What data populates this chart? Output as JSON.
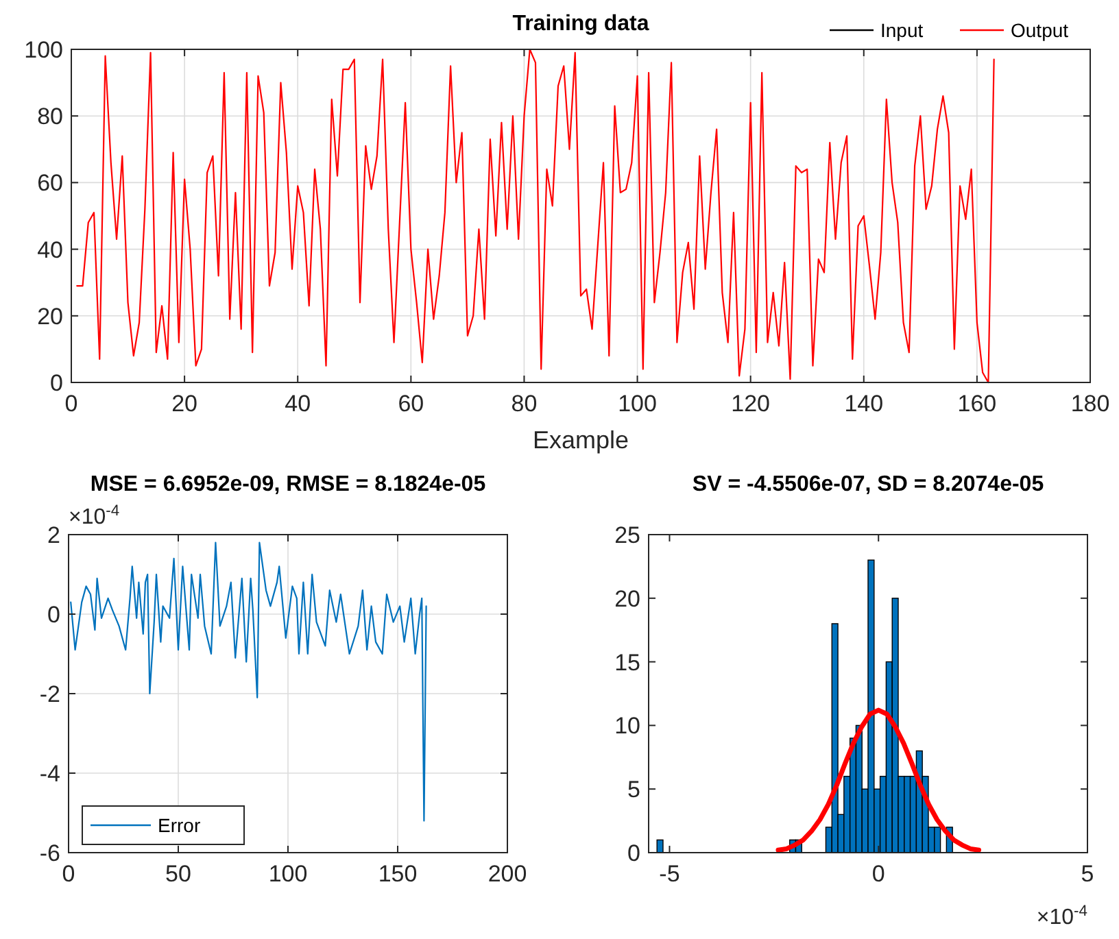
{
  "chart_data": [
    {
      "type": "line",
      "title": "Training data",
      "xlabel": "Example",
      "x": [
        1,
        2,
        3,
        4,
        5,
        6,
        7,
        8,
        9,
        10,
        11,
        12,
        13,
        14,
        15,
        16,
        17,
        18,
        19,
        20,
        21,
        22,
        23,
        24,
        25,
        26,
        27,
        28,
        29,
        30,
        31,
        32,
        33,
        34,
        35,
        36,
        37,
        38,
        39,
        40,
        41,
        42,
        43,
        44,
        45,
        46,
        47,
        48,
        49,
        50,
        51,
        52,
        53,
        54,
        55,
        56,
        57,
        58,
        59,
        60,
        61,
        62,
        63,
        64,
        65,
        66,
        67,
        68,
        69,
        70,
        71,
        72,
        73,
        74,
        75,
        76,
        77,
        78,
        79,
        80,
        81,
        82,
        83,
        84,
        85,
        86,
        87,
        88,
        89,
        90,
        91,
        92,
        93,
        94,
        95,
        96,
        97,
        98,
        99,
        100,
        101,
        102,
        103,
        104,
        105,
        106,
        107,
        108,
        109,
        110,
        111,
        112,
        113,
        114,
        115,
        116,
        117,
        118,
        119,
        120,
        121,
        122,
        123,
        124,
        125,
        126,
        127,
        128,
        129,
        130,
        131,
        132,
        133,
        134,
        135,
        136,
        137,
        138,
        139,
        140,
        141,
        142,
        143,
        144,
        145,
        146,
        147,
        148,
        149,
        150,
        151,
        152,
        153,
        154,
        155,
        156,
        157,
        158,
        159,
        160,
        161,
        162,
        163
      ],
      "series": [
        {
          "name": "Input",
          "color": "#000000",
          "values": [
            null,
            null,
            null,
            null,
            null,
            null,
            null,
            null,
            null,
            null,
            null,
            null,
            null,
            null,
            null,
            null,
            null,
            null,
            null,
            null,
            null,
            null,
            null,
            null,
            null,
            null,
            null,
            null,
            null,
            null,
            null,
            null,
            null,
            null,
            null,
            null,
            null,
            null,
            null,
            null,
            null,
            null,
            null,
            null,
            null,
            null,
            null,
            null,
            null,
            null,
            null,
            null,
            null,
            null,
            null,
            null,
            null,
            null,
            null,
            null,
            null,
            null,
            null,
            null,
            null,
            null,
            null,
            null,
            null,
            null,
            null,
            null,
            null,
            null,
            null,
            null,
            null,
            null,
            null,
            null,
            null,
            null,
            null,
            null,
            null,
            null,
            null,
            null,
            null,
            null,
            null,
            null,
            null,
            null,
            null,
            null,
            null,
            null,
            null,
            null,
            null,
            null,
            null,
            null,
            null,
            null,
            null,
            null,
            null,
            null,
            null,
            null,
            null,
            null,
            null,
            null,
            null,
            null,
            null,
            null,
            null,
            null,
            null,
            null,
            null,
            null,
            null,
            null,
            null,
            null,
            null,
            null,
            null,
            null,
            null,
            null,
            null,
            null,
            null,
            null,
            null,
            null,
            null,
            null,
            null,
            null,
            null,
            null,
            null,
            null,
            null,
            null,
            null,
            null,
            null,
            null,
            null,
            null,
            null,
            null,
            null,
            null,
            null
          ]
        },
        {
          "name": "Output",
          "color": "#ff0000",
          "values": [
            29,
            29,
            48,
            51,
            7,
            98,
            66,
            43,
            68,
            24,
            8,
            18,
            52,
            99,
            9,
            23,
            7,
            69,
            12,
            61,
            40,
            5,
            10,
            63,
            68,
            32,
            93,
            19,
            57,
            16,
            93,
            9,
            92,
            81,
            29,
            39,
            90,
            69,
            34,
            59,
            51,
            23,
            64,
            46,
            5,
            85,
            62,
            94,
            94,
            97,
            24,
            71,
            58,
            68,
            97,
            46,
            12,
            48,
            84,
            40,
            24,
            6,
            40,
            19,
            32,
            51,
            95,
            60,
            75,
            14,
            20,
            46,
            19,
            73,
            44,
            78,
            46,
            80,
            43,
            80,
            100,
            96,
            4,
            64,
            53,
            89,
            95,
            70,
            99,
            26,
            28,
            16,
            41,
            66,
            8,
            83,
            57,
            58,
            66,
            92,
            4,
            93,
            24,
            39,
            57,
            96,
            12,
            33,
            42,
            22,
            68,
            34,
            57,
            76,
            27,
            12,
            51,
            2,
            16,
            84,
            9,
            93,
            12,
            27,
            11,
            36,
            1,
            65,
            63,
            64,
            5,
            37,
            33,
            72,
            43,
            66,
            74,
            7,
            47,
            50,
            35,
            19,
            39,
            85,
            60,
            48,
            18,
            9,
            65,
            80,
            52,
            59,
            76,
            86,
            75,
            10,
            59,
            49,
            64,
            18,
            3,
            0,
            97
          ]
        }
      ],
      "xlim": [
        0,
        180
      ],
      "xticks": [
        0,
        20,
        40,
        60,
        80,
        100,
        120,
        140,
        160,
        180
      ],
      "ylim": [
        0,
        100
      ],
      "yticks": [
        0,
        20,
        40,
        60,
        80,
        100
      ],
      "grid": true,
      "legend": "top right"
    },
    {
      "type": "line",
      "title": "MSE = 6.6952e-09, RMSE = 8.1824e-05",
      "annotations": [
        "×10$^{-4}$"
      ],
      "series": [
        {
          "name": "Error",
          "color": "#0072bd",
          "x": [
            1,
            3,
            6,
            8,
            10,
            12,
            13,
            15,
            18,
            20,
            23,
            26,
            28,
            29,
            31,
            32,
            34,
            35,
            36,
            37,
            39,
            40,
            42,
            43,
            46,
            48,
            50,
            52,
            55,
            56,
            59,
            60,
            62,
            65,
            67,
            69,
            72,
            74,
            76,
            79,
            81,
            83,
            84,
            86,
            87,
            90,
            92,
            95,
            96,
            99,
            102,
            104,
            105,
            107,
            109,
            111,
            113,
            117,
            119,
            122,
            124,
            128,
            132,
            134,
            136,
            138,
            140,
            143,
            145,
            148,
            151,
            153,
            156,
            158,
            160,
            161,
            162,
            163
          ],
          "values": [
            0.3,
            -0.9,
            0.3,
            0.7,
            0.5,
            -0.4,
            0.9,
            -0.1,
            0.4,
            0.1,
            -0.3,
            -0.9,
            0.4,
            1.2,
            -0.1,
            0.8,
            -0.5,
            0.8,
            1.0,
            -2.0,
            -0.2,
            1.0,
            -0.7,
            0.2,
            -0.1,
            1.4,
            -0.9,
            1.2,
            -0.9,
            1.0,
            -0.1,
            1.0,
            -0.3,
            -1.0,
            1.8,
            -0.3,
            0.2,
            0.8,
            -1.1,
            0.9,
            -1.2,
            0.9,
            0.1,
            -2.1,
            1.8,
            0.6,
            0.2,
            0.8,
            1.2,
            -0.6,
            0.7,
            0.4,
            -1.0,
            0.8,
            -1.0,
            1.0,
            -0.2,
            -0.8,
            0.6,
            -0.2,
            0.5,
            -1.0,
            -0.3,
            0.6,
            -0.9,
            0.2,
            -0.7,
            -1.0,
            0.5,
            -0.2,
            0.2,
            -0.7,
            0.4,
            -1.0,
            0.0,
            0.4,
            -5.2,
            0.2
          ]
        }
      ],
      "xlim": [
        0,
        200
      ],
      "xticks": [
        0,
        50,
        100,
        150,
        200
      ],
      "ylim": [
        -6,
        2
      ],
      "yticks": [
        -6,
        -4,
        -2,
        0,
        2
      ],
      "grid": true,
      "legend": "bottom left"
    },
    {
      "type": "histogram",
      "title": "SV = -4.5506e-07, SD = 8.2074e-05",
      "annotations": [
        "×10$^{-4}$"
      ],
      "color": "#0072bd",
      "bins": [
        -5.3,
        -5.156,
        -5.011,
        -4.867,
        -4.723,
        -4.579,
        -4.434,
        -4.29,
        -4.146,
        -4.001,
        -3.857,
        -3.713,
        -3.568,
        -3.424,
        -3.28,
        -3.136,
        -2.991,
        -2.847,
        -2.703,
        -2.558,
        -2.414,
        -2.27,
        -2.125,
        -1.981,
        -1.837,
        -1.693,
        -1.548,
        -1.404,
        -1.26,
        -1.115,
        -0.971,
        -0.827,
        -0.682,
        -0.538,
        -0.394,
        -0.25,
        -0.105,
        0.039,
        0.183,
        0.328,
        0.472,
        0.616,
        0.76,
        0.905,
        1.049,
        1.193,
        1.338,
        1.482,
        1.626,
        1.771
      ],
      "values": [
        1,
        0,
        0,
        0,
        0,
        0,
        0,
        0,
        0,
        0,
        0,
        0,
        0,
        0,
        0,
        0,
        0,
        0,
        0,
        0,
        0,
        0,
        1,
        1,
        0,
        0,
        0,
        0,
        2,
        18,
        3,
        6,
        9,
        10,
        5,
        23,
        5,
        6,
        15,
        20,
        6,
        6,
        6,
        8,
        6,
        2,
        2,
        0,
        2
      ],
      "series": [
        {
          "type": "line",
          "color": "#ff0000",
          "x": [
            -2.4,
            -2.2,
            -2.0,
            -1.8,
            -1.6,
            -1.4,
            -1.2,
            -1.0,
            -0.8,
            -0.6,
            -0.4,
            -0.2,
            0,
            0.2,
            0.4,
            0.6,
            0.8,
            1.0,
            1.2,
            1.4,
            1.6,
            1.8,
            2.0,
            2.2,
            2.4
          ],
          "values": [
            0.2,
            0.3,
            0.6,
            1.0,
            1.7,
            2.6,
            3.8,
            5.3,
            7.0,
            8.6,
            9.9,
            10.9,
            11.2,
            10.9,
            9.9,
            8.6,
            7.0,
            5.3,
            3.8,
            2.6,
            1.7,
            1.0,
            0.6,
            0.3,
            0.2
          ]
        }
      ],
      "xlim": [
        -5.5,
        5
      ],
      "xticks": [
        -5,
        0,
        5
      ],
      "ylim": [
        0,
        25
      ],
      "yticks": [
        0,
        5,
        10,
        15,
        20,
        25
      ]
    }
  ]
}
